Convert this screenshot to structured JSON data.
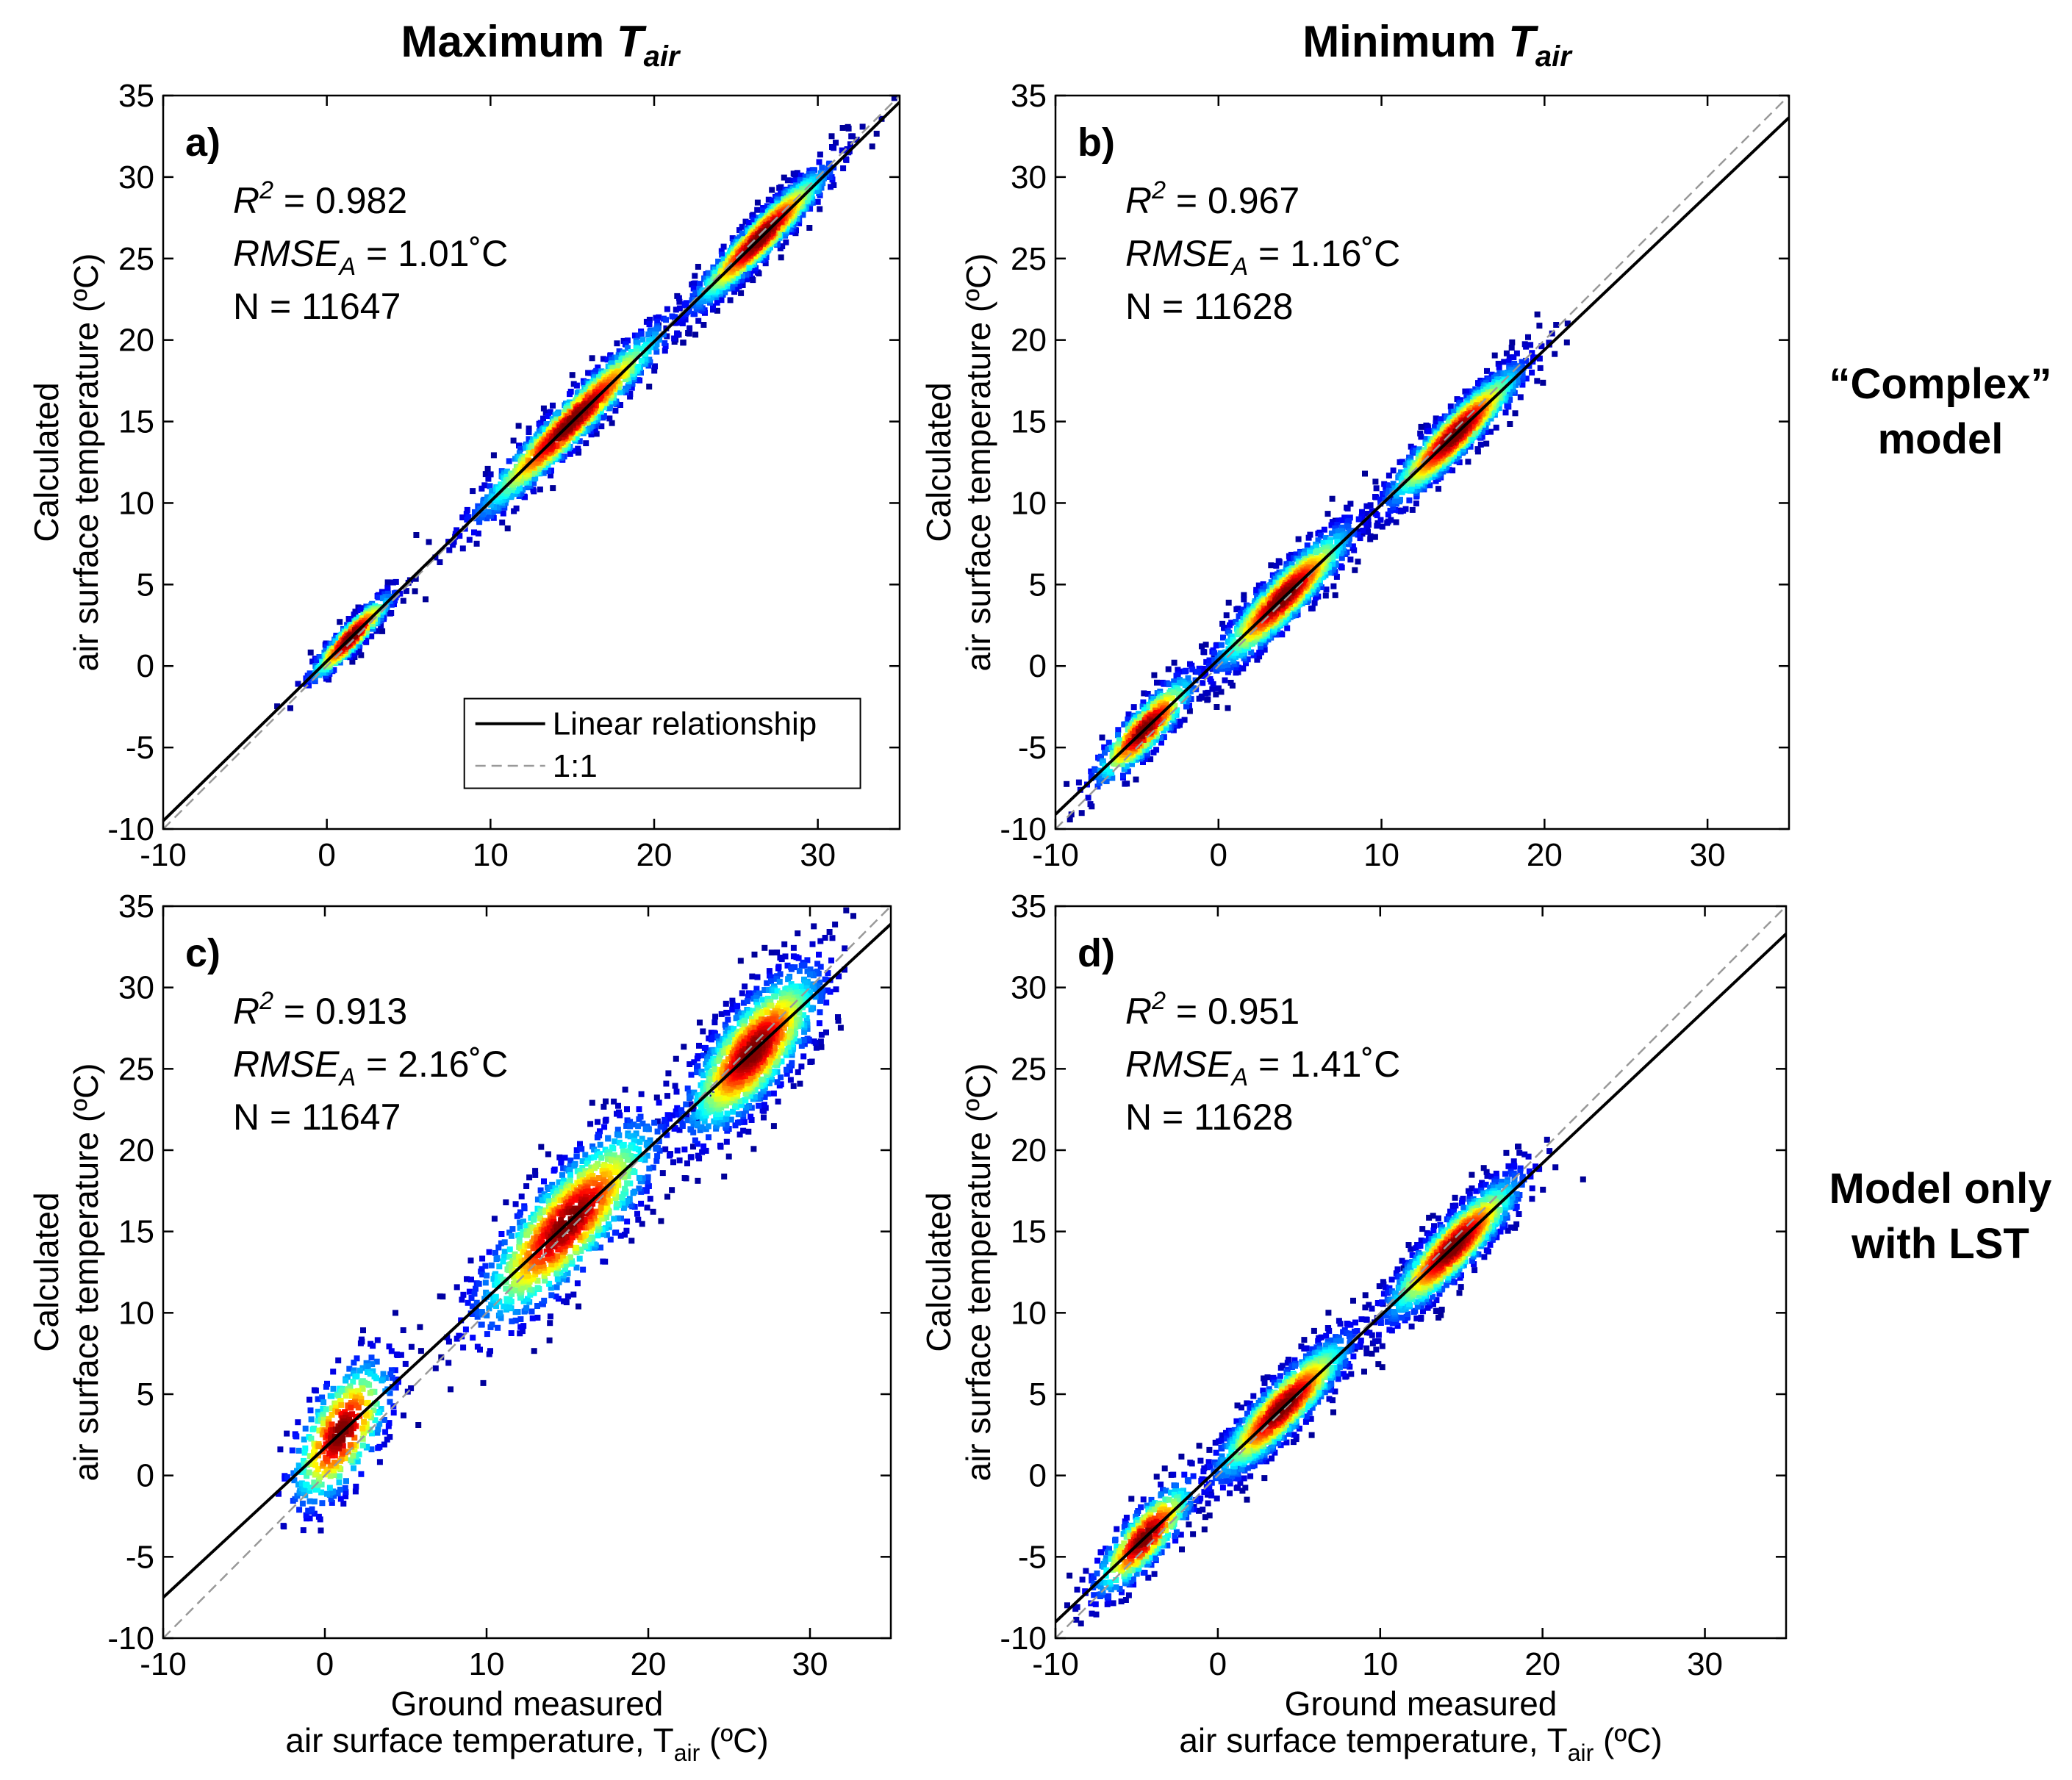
{
  "headers": {
    "col_max_prefix": "Maximum ",
    "col_min_prefix": "Minimum ",
    "T": "T",
    "air_sub": "air"
  },
  "side_labels": {
    "complex_line1": "“Complex”",
    "complex_line2": "model",
    "lst_line1": "Model only",
    "lst_line2": "with LST"
  },
  "axis_text": {
    "ylabel_line1": "Calculated",
    "ylabel_line2": "air surface temperature (ºC)",
    "xlabel_line1": "Ground measured",
    "xlabel_line2_prefix": "air surface temperature, T",
    "xlabel_sub": "air",
    "xlabel_suffix": " (ºC)"
  },
  "stat_labels": {
    "r": "R",
    "r_sup": "2",
    "rmse": "RMSE",
    "rmse_sub": "A",
    "n": "N",
    "eq": " = "
  },
  "legend": {
    "linear": "Linear relationship",
    "one_to_one": "1:1"
  },
  "colors": {
    "low_density": "#00008f",
    "mid_density": "#00ffff",
    "high_density": "#ff0000",
    "fit_line": "#000000",
    "one_to_one_line": "#999999"
  },
  "chart_data": [
    {
      "type": "scatter",
      "panel": "a)",
      "title": "Maximum Tair / “Complex” model",
      "xlabel": "",
      "ylabel": "Calculated air surface temperature (ºC)",
      "xlim": [
        -10,
        35
      ],
      "ylim": [
        -10,
        35
      ],
      "xticks": [
        -10,
        0,
        10,
        20,
        30
      ],
      "yticks": [
        -10,
        -5,
        0,
        5,
        10,
        15,
        20,
        25,
        30,
        35
      ],
      "r2": "0.982",
      "rmse": "1.01˚C",
      "n": "11647",
      "fit": {
        "slope": 0.98,
        "intercept": 0.3
      },
      "clusters": [
        {
          "cx": 1.5,
          "sd_along": 1.8,
          "sd_perp": 0.55,
          "count": 450
        },
        {
          "cx": 15.0,
          "sd_along": 4.2,
          "sd_perp": 0.9,
          "count": 1100
        },
        {
          "cx": 26.5,
          "sd_along": 3.0,
          "sd_perp": 0.8,
          "count": 1200
        }
      ],
      "show_legend": true
    },
    {
      "type": "scatter",
      "panel": "b)",
      "title": "Minimum Tair / “Complex” model",
      "xlabel": "",
      "ylabel": "Calculated air surface temperature (ºC)",
      "xlim": [
        -10,
        35
      ],
      "ylim": [
        -10,
        35
      ],
      "xticks": [
        -10,
        0,
        10,
        20,
        30
      ],
      "yticks": [
        -10,
        -5,
        0,
        5,
        10,
        15,
        20,
        25,
        30,
        35
      ],
      "r2": "0.967",
      "rmse": "1.16˚C",
      "n": "11628",
      "fit": {
        "slope": 0.95,
        "intercept": 0.4
      },
      "clusters": [
        {
          "cx": -4.5,
          "sd_along": 2.2,
          "sd_perp": 0.9,
          "count": 450
        },
        {
          "cx": 4.0,
          "sd_along": 3.0,
          "sd_perp": 1.0,
          "count": 1100
        },
        {
          "cx": 14.5,
          "sd_along": 3.0,
          "sd_perp": 0.9,
          "count": 1200
        }
      ],
      "show_legend": false
    },
    {
      "type": "scatter",
      "panel": "c)",
      "title": "Maximum Tair / Model only with LST",
      "xlabel": "Ground measured air surface temperature, Tair (ºC)",
      "ylabel": "Calculated air surface temperature (ºC)",
      "xlim": [
        -10,
        35
      ],
      "ylim": [
        -10,
        35
      ],
      "xticks": [
        -10,
        0,
        10,
        20,
        30
      ],
      "yticks": [
        -10,
        -5,
        0,
        5,
        10,
        15,
        20,
        25,
        30,
        35
      ],
      "r2": "0.913",
      "rmse": "2.16˚C",
      "n": "11647",
      "fit": {
        "slope": 0.92,
        "intercept": 1.7
      },
      "clusters": [
        {
          "cx": 1.0,
          "sd_along": 2.2,
          "sd_perp": 2.0,
          "count": 450
        },
        {
          "cx": 15.0,
          "sd_along": 4.0,
          "sd_perp": 2.0,
          "count": 1100
        },
        {
          "cx": 26.5,
          "sd_along": 3.0,
          "sd_perp": 1.9,
          "count": 1200
        }
      ],
      "show_legend": false
    },
    {
      "type": "scatter",
      "panel": "d)",
      "title": "Minimum Tair / Model only with LST",
      "xlabel": "Ground measured air surface temperature, Tair (ºC)",
      "ylabel": "Calculated air surface temperature (ºC)",
      "xlim": [
        -10,
        35
      ],
      "ylim": [
        -10,
        35
      ],
      "xticks": [
        -10,
        0,
        10,
        20,
        30
      ],
      "yticks": [
        -10,
        -5,
        0,
        5,
        10,
        15,
        20,
        25,
        30,
        35
      ],
      "r2": "0.951",
      "rmse": "1.41˚C",
      "n": "11628",
      "fit": {
        "slope": 0.94,
        "intercept": 0.4
      },
      "clusters": [
        {
          "cx": -4.5,
          "sd_along": 2.2,
          "sd_perp": 1.1,
          "count": 450
        },
        {
          "cx": 4.0,
          "sd_along": 3.0,
          "sd_perp": 1.1,
          "count": 1100
        },
        {
          "cx": 14.5,
          "sd_along": 3.0,
          "sd_perp": 1.1,
          "count": 1200
        }
      ],
      "show_legend": false
    }
  ]
}
